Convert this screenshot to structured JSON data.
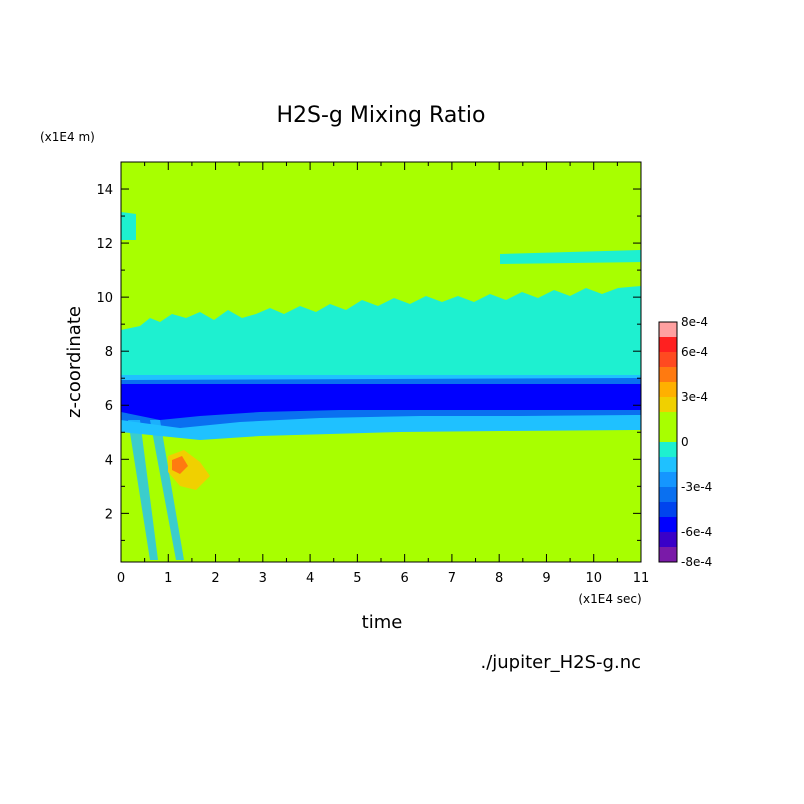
{
  "chart_data": {
    "type": "heatmap",
    "title": "H2S-g Mixing Ratio",
    "xlabel": "time",
    "ylabel": "z-coordinate",
    "x_unit": "(x1E4 sec)",
    "y_unit": "(x1E4 m)",
    "xlim": [
      0,
      11
    ],
    "ylim": [
      0.2,
      15
    ],
    "x_ticks": [
      "0",
      "1",
      "2",
      "3",
      "4",
      "5",
      "6",
      "7",
      "8",
      "9",
      "10",
      "11"
    ],
    "y_ticks": [
      "2",
      "4",
      "6",
      "8",
      "10",
      "12",
      "14"
    ],
    "colorbar": {
      "labels": [
        "8e-4",
        "6e-4",
        "3e-4",
        "0",
        "-3e-4",
        "-6e-4",
        "-8e-4"
      ],
      "levels": [
        -0.0008,
        -0.0007,
        -0.0006,
        -0.0005,
        -0.0004,
        -0.0003,
        -0.0002,
        -0.0001,
        0,
        0.0001,
        0.0002,
        0.0003,
        0.0004,
        0.0005,
        0.0006,
        0.0007,
        0.0008
      ],
      "colors": [
        "#7a1aa8",
        "#3a00c8",
        "#0000ff",
        "#0044ee",
        "#0a70f0",
        "#1596ff",
        "#1fc1ff",
        "#1ef0d0",
        "#a8ff00",
        "#a8ff00",
        "#f0d000",
        "#ffb000",
        "#ff7a10",
        "#ff4a20",
        "#ff2020",
        "#ffa0a0"
      ]
    },
    "bands": [
      {
        "name": "background",
        "value": 0
      },
      {
        "name": "negative-layer-upper",
        "y_range": [
          6.8,
          9.0
        ],
        "value": -0.0001
      },
      {
        "name": "negative-layer-core",
        "y_range": [
          5.6,
          6.6
        ],
        "value": -0.0006
      },
      {
        "name": "negative-layer-lower",
        "y_range": [
          4.9,
          5.6
        ],
        "value": -0.0002
      },
      {
        "name": "positive-patch",
        "x_range": [
          1.0,
          1.8
        ],
        "y_range": [
          2.9,
          4.0
        ],
        "value": 0.0004
      }
    ]
  },
  "footer": {
    "filename": "./jupiter_H2S-g.nc"
  }
}
